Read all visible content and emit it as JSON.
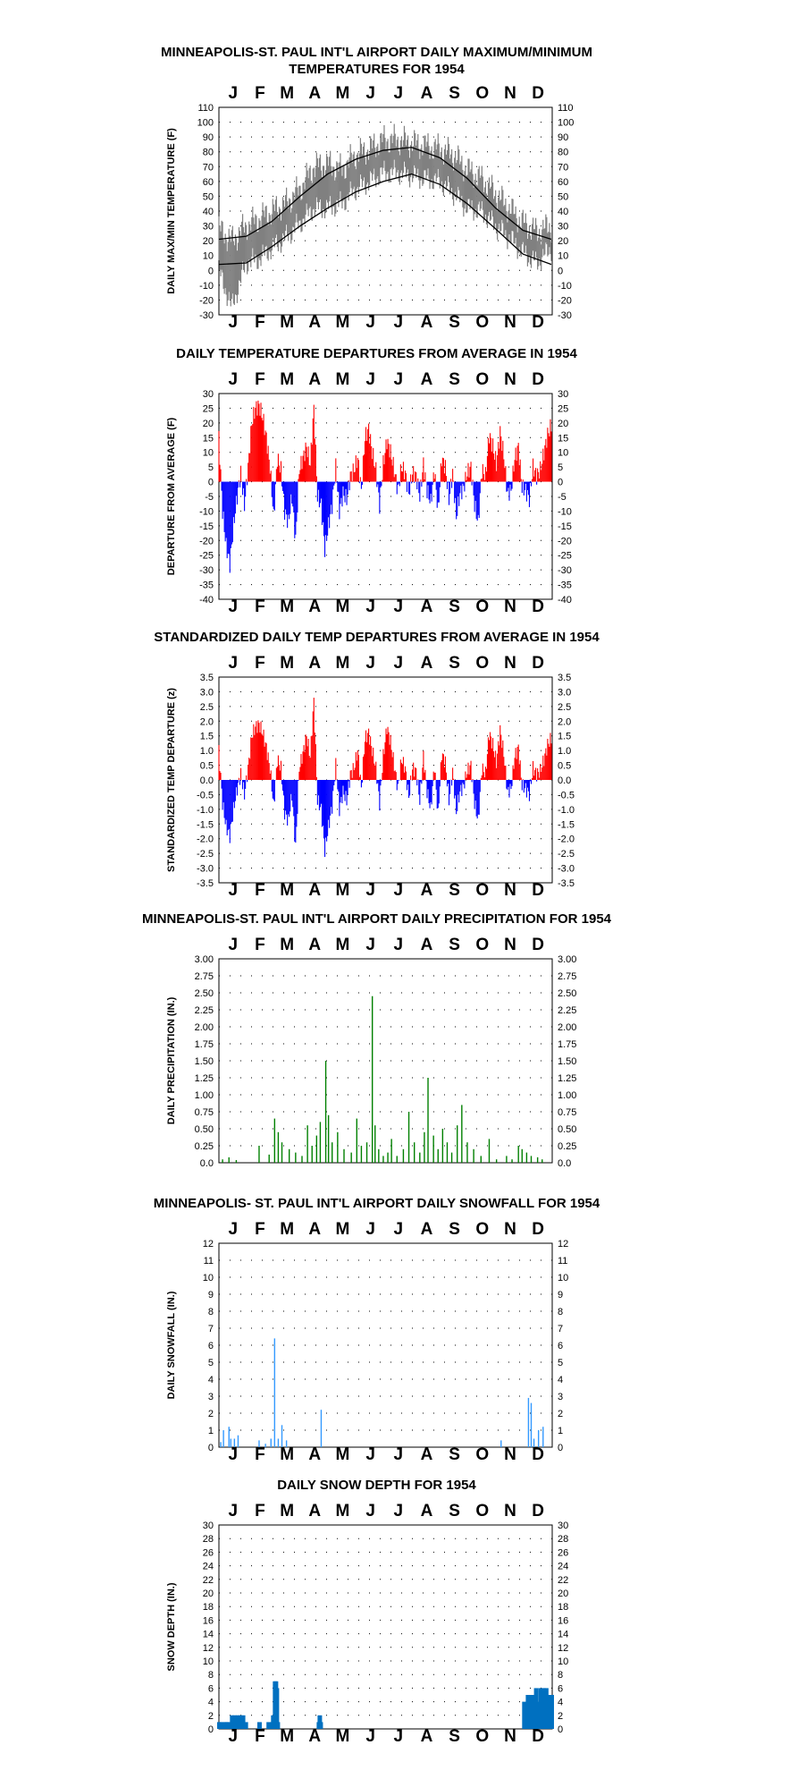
{
  "months": [
    "J",
    "F",
    "M",
    "A",
    "M",
    "J",
    "J",
    "A",
    "S",
    "O",
    "N",
    "D"
  ],
  "colors": {
    "above": "#ff0000",
    "below": "#0000ff",
    "precip": "#008000",
    "snow": "#3399ff",
    "depth": "#0070c0",
    "temp_trace": "#808080",
    "normals": "#000000",
    "grid": "#000000"
  },
  "charts": [
    {
      "id": "temps",
      "title_lines": [
        "MINNEAPOLIS-ST. PAUL INT'L AIRPORT DAILY MAXIMUM/MINIMUM",
        "TEMPERATURES FOR 1954"
      ],
      "ylabel": "DAILY MAX/MIN TEMPERATURE (F)",
      "y_ticks": [
        "110",
        "100",
        "90",
        "80",
        "70",
        "60",
        "50",
        "40",
        "30",
        "20",
        "10",
        "0",
        "-10",
        "-20",
        "-30"
      ],
      "bottom_month_labels": true
    },
    {
      "id": "departures",
      "title_lines": [
        "DAILY TEMPERATURE DEPARTURES FROM AVERAGE IN 1954"
      ],
      "ylabel": "DEPARTURE FROM AVERAGE (F)",
      "y_ticks": [
        "30",
        "25",
        "20",
        "15",
        "10",
        "5",
        "0",
        "-5",
        "-10",
        "-15",
        "-20",
        "-25",
        "-30",
        "-35",
        "-40"
      ],
      "bottom_month_labels": true
    },
    {
      "id": "standardized",
      "title_lines": [
        "STANDARDIZED DAILY TEMP DEPARTURES FROM AVERAGE IN 1954"
      ],
      "ylabel": "STANDARDIZED TEMP DEPARTURE (z)",
      "y_ticks": [
        "3.5",
        "3.0",
        "2.5",
        "2.0",
        "1.5",
        "1.0",
        "0.5",
        "0.0",
        "-0.5",
        "-1.0",
        "-1.5",
        "-2.0",
        "-2.5",
        "-3.0",
        "-3.5"
      ],
      "bottom_month_labels": true
    },
    {
      "id": "precip",
      "title_lines": [
        "MINNEAPOLIS-ST. PAUL INT'L AIRPORT DAILY PRECIPITATION FOR 1954"
      ],
      "ylabel": "DAILY PRECIPITATION (IN.)",
      "y_ticks": [
        "3.00",
        "2.75",
        "2.50",
        "2.25",
        "2.00",
        "1.75",
        "1.50",
        "1.25",
        "1.00",
        "0.75",
        "0.50",
        "0.25",
        "0.0"
      ],
      "bottom_month_labels": false
    },
    {
      "id": "snowfall",
      "title_lines": [
        "MINNEAPOLIS- ST. PAUL INT'L AIRPORT DAILY SNOWFALL FOR 1954"
      ],
      "ylabel": "DAILY SNOWFALL (IN.)",
      "y_ticks": [
        "12",
        "11",
        "10",
        "9",
        "8",
        "7",
        "6",
        "5",
        "4",
        "3",
        "2",
        "1",
        "0"
      ],
      "bottom_month_labels": true
    },
    {
      "id": "snowdepth",
      "title_lines": [
        "DAILY SNOW DEPTH FOR 1954"
      ],
      "ylabel": "SNOW DEPTH (IN.)",
      "y_ticks": [
        "30",
        "28",
        "26",
        "24",
        "22",
        "20",
        "18",
        "16",
        "14",
        "12",
        "10",
        "8",
        "6",
        "4",
        "2",
        "0"
      ],
      "bottom_month_labels": true
    }
  ],
  "chart_data": [
    {
      "type": "line",
      "chart": "temps",
      "ylim": [
        -30,
        110
      ],
      "x_unit": "day of year 1954",
      "series": [
        {
          "kind": "daily_max_min_range",
          "x": [
            1,
            15,
            31,
            46,
            59,
            74,
            90,
            105,
            120,
            135,
            151,
            166,
            181,
            196,
            212,
            227,
            243,
            258,
            273,
            288,
            304,
            319,
            334,
            349,
            365
          ],
          "max": [
            28,
            20,
            30,
            35,
            40,
            45,
            55,
            70,
            72,
            68,
            78,
            82,
            88,
            88,
            86,
            84,
            82,
            78,
            68,
            62,
            52,
            42,
            32,
            26,
            30
          ],
          "min": [
            0,
            -25,
            5,
            8,
            15,
            22,
            32,
            42,
            42,
            45,
            55,
            60,
            66,
            66,
            64,
            62,
            60,
            52,
            42,
            40,
            30,
            22,
            12,
            5,
            15
          ]
        },
        {
          "name": "normal max",
          "x": [
            1,
            31,
            59,
            90,
            120,
            151,
            181,
            212,
            243,
            273,
            304,
            334,
            365
          ],
          "y": [
            21,
            23,
            33,
            50,
            65,
            75,
            81,
            83,
            76,
            62,
            42,
            27,
            21
          ]
        },
        {
          "name": "normal min",
          "x": [
            1,
            31,
            59,
            90,
            120,
            151,
            181,
            212,
            243,
            273,
            304,
            334,
            365
          ],
          "y": [
            4,
            5,
            16,
            30,
            42,
            53,
            60,
            65,
            58,
            45,
            28,
            11,
            4
          ]
        }
      ]
    },
    {
      "type": "bar",
      "chart": "departures",
      "ylim": [
        -40,
        30
      ],
      "x_unit": "day of year 1954",
      "x": [
        1,
        5,
        9,
        13,
        17,
        21,
        25,
        29,
        33,
        37,
        41,
        45,
        49,
        53,
        57,
        61,
        65,
        69,
        73,
        77,
        81,
        85,
        89,
        93,
        97,
        101,
        105,
        109,
        113,
        117,
        121,
        125,
        129,
        133,
        137,
        141,
        145,
        149,
        153,
        157,
        161,
        165,
        169,
        173,
        177,
        181,
        185,
        189,
        193,
        197,
        201,
        205,
        209,
        213,
        217,
        221,
        225,
        229,
        233,
        237,
        241,
        245,
        249,
        253,
        257,
        261,
        265,
        269,
        273,
        277,
        281,
        285,
        289,
        293,
        297,
        301,
        305,
        309,
        313,
        317,
        321,
        325,
        329,
        333,
        337,
        341,
        345,
        349,
        353,
        357,
        361,
        365
      ],
      "values": [
        15,
        -10,
        -22,
        -28,
        -15,
        -5,
        3,
        -8,
        5,
        20,
        25,
        26,
        22,
        15,
        5,
        -12,
        8,
        4,
        -10,
        -14,
        -5,
        -20,
        4,
        8,
        12,
        6,
        25,
        -5,
        -8,
        -23,
        -15,
        -8,
        5,
        -10,
        -4,
        -6,
        2,
        4,
        8,
        -3,
        15,
        18,
        10,
        4,
        -8,
        6,
        14,
        10,
        4,
        -3,
        5,
        3,
        -4,
        3,
        2,
        -5,
        6,
        -3,
        -7,
        4,
        -10,
        8,
        5,
        -6,
        3,
        -12,
        -4,
        -2,
        3,
        5,
        -8,
        -14,
        4,
        2,
        16,
        12,
        6,
        17,
        9,
        -4,
        -3,
        8,
        12,
        -2,
        -3,
        -6,
        5,
        2,
        4,
        10,
        16,
        19
      ],
      "series": [
        {
          "values_note_excluded": true
        }
      ]
    },
    {
      "type": "bar",
      "chart": "standardized",
      "ylim": [
        -3.5,
        3.5
      ],
      "x_unit": "day of year 1954",
      "x": [
        1,
        5,
        9,
        13,
        17,
        21,
        25,
        29,
        33,
        37,
        41,
        45,
        49,
        53,
        57,
        61,
        65,
        69,
        73,
        77,
        81,
        85,
        89,
        93,
        97,
        101,
        105,
        109,
        113,
        117,
        121,
        125,
        129,
        133,
        137,
        141,
        145,
        149,
        153,
        157,
        161,
        165,
        169,
        173,
        177,
        181,
        185,
        189,
        193,
        197,
        201,
        205,
        209,
        213,
        217,
        221,
        225,
        229,
        233,
        237,
        241,
        245,
        249,
        253,
        257,
        261,
        265,
        269,
        273,
        277,
        281,
        285,
        289,
        293,
        297,
        301,
        305,
        309,
        313,
        317,
        321,
        325,
        329,
        333,
        337,
        341,
        345,
        349,
        353,
        357,
        361,
        365
      ],
      "values": [
        1.0,
        -0.8,
        -1.6,
        -1.9,
        -1.0,
        -0.3,
        0.2,
        -0.5,
        0.4,
        1.5,
        1.8,
        1.9,
        1.6,
        1.1,
        0.4,
        -0.9,
        0.7,
        0.4,
        -1.1,
        -1.4,
        -0.5,
        -2.3,
        0.4,
        0.9,
        1.5,
        0.8,
        2.7,
        -0.7,
        -1.0,
        -2.4,
        -1.6,
        -0.9,
        0.5,
        -1.0,
        -0.4,
        -0.7,
        0.2,
        0.4,
        1.0,
        -0.3,
        1.4,
        1.6,
        1.0,
        0.4,
        -0.8,
        0.8,
        1.8,
        1.3,
        0.5,
        -0.3,
        0.7,
        0.4,
        -0.6,
        0.4,
        0.3,
        -0.7,
        0.8,
        -0.4,
        -1.0,
        0.5,
        -1.2,
        0.9,
        0.6,
        -0.7,
        0.3,
        -1.1,
        -0.4,
        -0.2,
        0.3,
        0.5,
        -0.8,
        -1.4,
        0.4,
        0.2,
        1.6,
        1.2,
        0.6,
        1.7,
        0.9,
        -0.4,
        -0.3,
        0.8,
        1.1,
        -0.2,
        -0.3,
        -0.5,
        0.4,
        0.2,
        0.3,
        0.7,
        1.2,
        1.4
      ]
    },
    {
      "type": "bar",
      "chart": "precip",
      "ylim": [
        0,
        3.0
      ],
      "x_unit": "day of year 1954",
      "x": [
        5,
        12,
        20,
        45,
        56,
        62,
        66,
        70,
        78,
        85,
        92,
        98,
        103,
        108,
        112,
        118,
        121,
        125,
        131,
        138,
        146,
        152,
        157,
        163,
        169,
        172,
        176,
        181,
        186,
        190,
        196,
        203,
        209,
        215,
        221,
        226,
        230,
        236,
        241,
        246,
        251,
        256,
        262,
        267,
        273,
        280,
        288,
        297,
        305,
        316,
        322,
        329,
        333,
        338,
        343,
        350,
        355
      ],
      "values": [
        0.05,
        0.08,
        0.04,
        0.25,
        0.12,
        0.65,
        0.45,
        0.3,
        0.2,
        0.15,
        0.1,
        0.55,
        0.25,
        0.4,
        0.6,
        1.5,
        0.7,
        0.3,
        0.45,
        0.2,
        0.15,
        0.65,
        0.25,
        0.3,
        2.45,
        0.55,
        0.2,
        0.1,
        0.15,
        0.35,
        0.1,
        0.2,
        0.75,
        0.3,
        0.15,
        0.45,
        1.25,
        0.4,
        0.2,
        0.5,
        0.3,
        0.15,
        0.55,
        0.85,
        0.3,
        0.2,
        0.1,
        0.35,
        0.05,
        0.1,
        0.05,
        0.25,
        0.2,
        0.15,
        0.1,
        0.08,
        0.05
      ]
    },
    {
      "type": "bar",
      "chart": "snowfall",
      "ylim": [
        0,
        12
      ],
      "x_unit": "day of year 1954",
      "x": [
        3,
        6,
        12,
        14,
        18,
        22,
        45,
        52,
        58,
        62,
        66,
        70,
        75,
        113,
        310,
        340,
        343,
        346,
        351,
        356
      ],
      "values": [
        0.3,
        1.0,
        1.2,
        0.5,
        0.5,
        0.7,
        0.4,
        0.2,
        0.5,
        6.4,
        0.5,
        1.3,
        0.4,
        2.2,
        0.4,
        2.9,
        2.6,
        0.5,
        1.0,
        1.2
      ]
    },
    {
      "type": "area",
      "chart": "snowdepth",
      "ylim": [
        0,
        30
      ],
      "x_unit": "day of year 1954",
      "x": [
        1,
        3,
        5,
        7,
        9,
        12,
        15,
        18,
        21,
        24,
        27,
        30,
        45,
        55,
        59,
        60,
        62,
        63,
        64,
        65,
        66,
        110,
        111,
        112,
        335,
        339,
        342,
        345,
        348,
        350,
        353,
        356,
        359,
        362,
        365
      ],
      "values": [
        1,
        1,
        0,
        1,
        1,
        1,
        2,
        2,
        2,
        2,
        2,
        1,
        1,
        1,
        1,
        2,
        7,
        7,
        6,
        1,
        0,
        1,
        2,
        1,
        4,
        5,
        5,
        5,
        6,
        4,
        6,
        6,
        6,
        5,
        5
      ]
    }
  ]
}
